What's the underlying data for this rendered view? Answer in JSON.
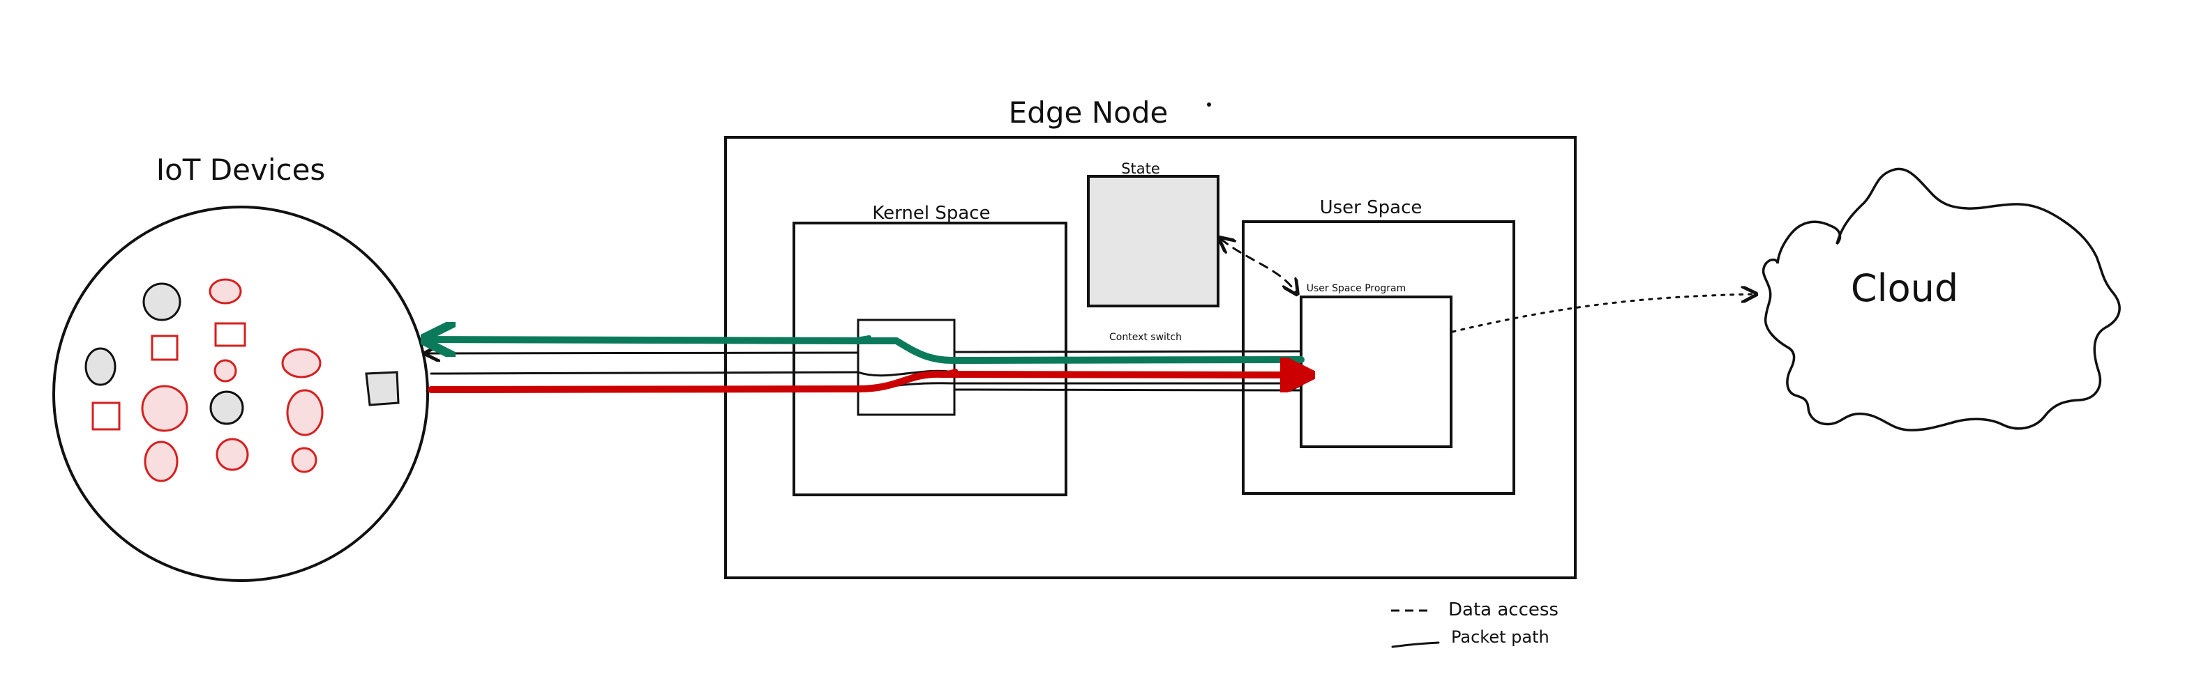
{
  "labels": {
    "iot_devices": "IoT Devices",
    "edge_node": "Edge Node",
    "kernel_space": "Kernel Space",
    "user_space": "User Space",
    "state": "State",
    "user_space_program": "User Space Program",
    "context_switch": "Context switch",
    "cloud": "Cloud"
  },
  "legend": {
    "dashed": "Data access",
    "solid": "Packet path"
  },
  "colors": {
    "green_path": "#0a7a5a",
    "red_path": "#cc0000",
    "device_red": "#d61f1f",
    "device_fill_red": "#f8dede",
    "device_fill_gray": "#e3e3e3",
    "state_fill": "#e6e6e6",
    "stroke": "#111111"
  }
}
